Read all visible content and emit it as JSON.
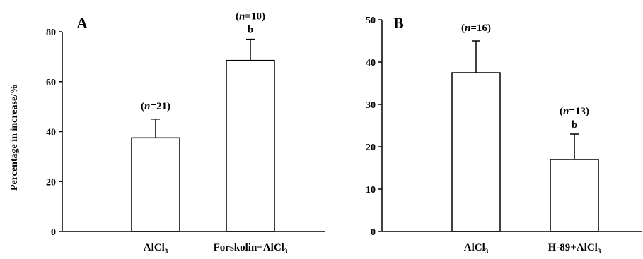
{
  "chart_data": [
    {
      "type": "bar",
      "panel_label": "A",
      "ylabel": "Percentage in increase/%",
      "ylim": [
        0,
        80
      ],
      "yticks": [
        0,
        20,
        40,
        60,
        80
      ],
      "grid": false,
      "categories": [
        {
          "label": "AlCl",
          "sub": "3"
        },
        {
          "label": "Forskolin+AlCl",
          "sub": "3"
        }
      ],
      "values": [
        37.5,
        68.5
      ],
      "errors": [
        7.5,
        8.5
      ],
      "n_labels": [
        "21",
        "10"
      ],
      "sig_marks": [
        "",
        "b"
      ],
      "n_prefix": "(",
      "n_italic": "n",
      "n_equals": "=",
      "n_suffix": ")"
    },
    {
      "type": "bar",
      "panel_label": "B",
      "ylabel": "",
      "ylim": [
        0,
        50
      ],
      "yticks": [
        0,
        10,
        20,
        30,
        40,
        50
      ],
      "grid": false,
      "categories": [
        {
          "label": "AlCl",
          "sub": "3"
        },
        {
          "label": "H-89+AlCl",
          "sub": "3"
        }
      ],
      "values": [
        37.5,
        17.0
      ],
      "errors": [
        7.5,
        6.0
      ],
      "n_labels": [
        "16",
        "13"
      ],
      "sig_marks": [
        "",
        "b"
      ],
      "n_prefix": "(",
      "n_italic": "n",
      "n_equals": "=",
      "n_suffix": ")"
    }
  ]
}
